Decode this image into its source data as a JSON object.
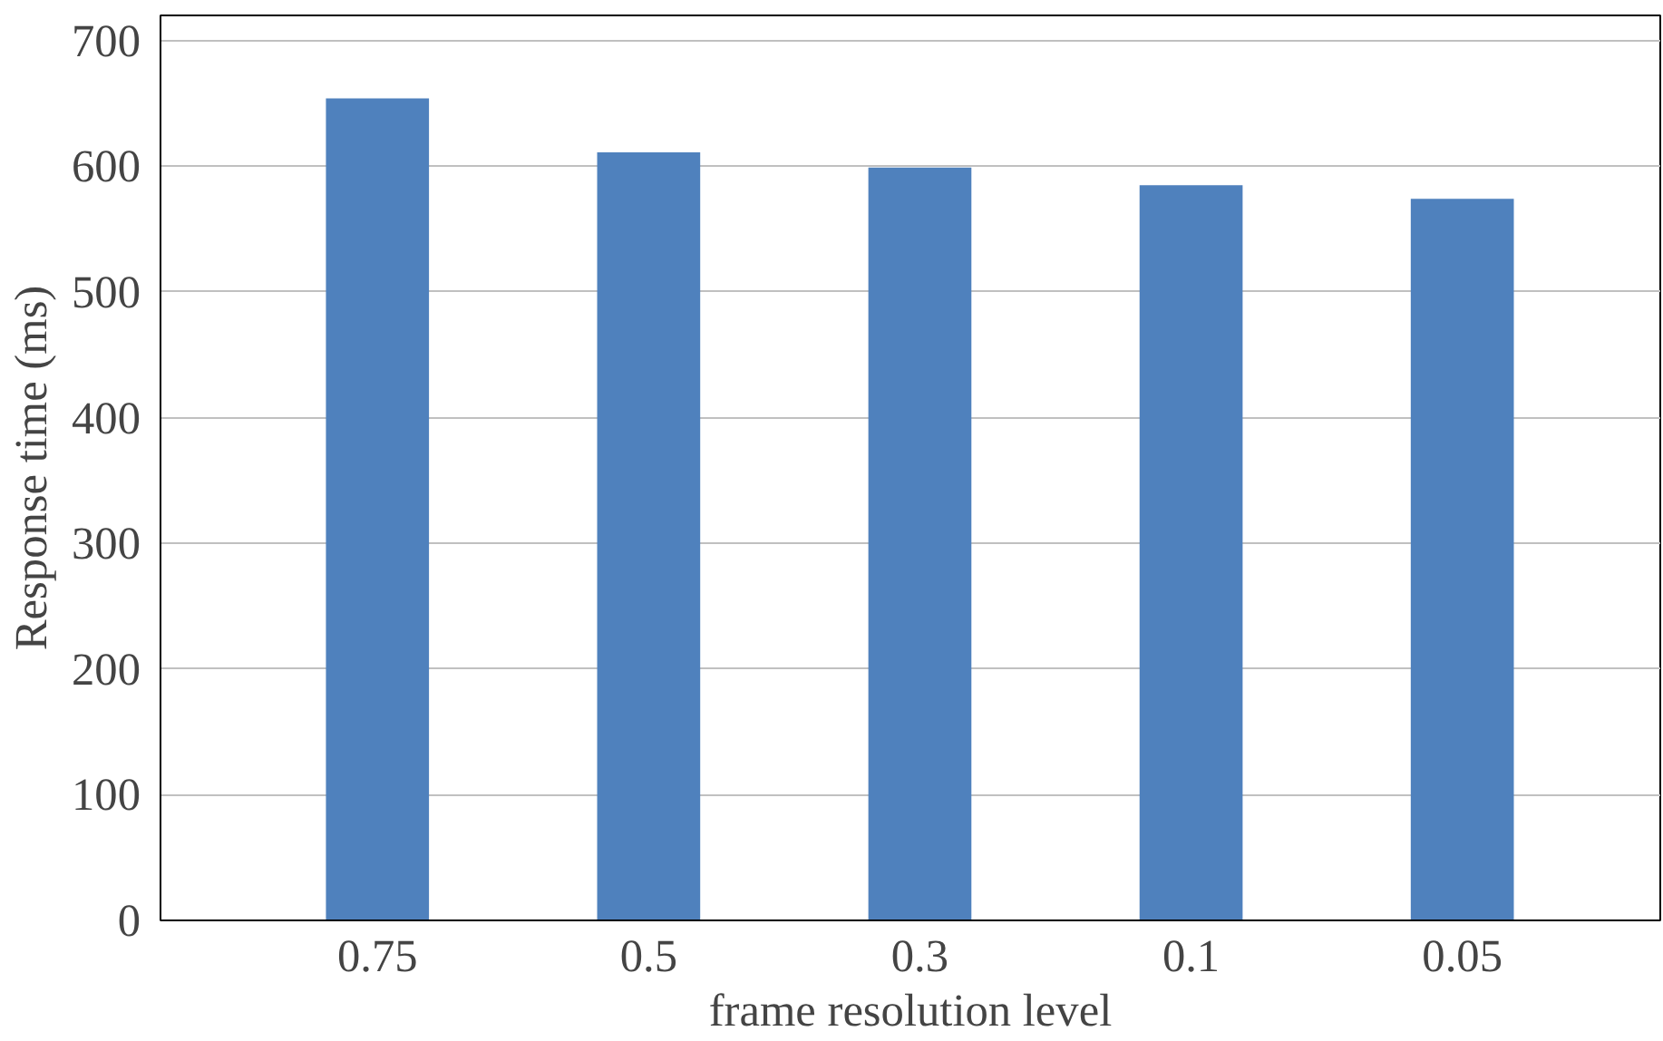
{
  "chart_data": {
    "type": "bar",
    "xlabel": "frame resolution level",
    "ylabel": "Response time (ms)",
    "categories": [
      "0.75",
      "0.5",
      "0.3",
      "0.1",
      "0.05"
    ],
    "values": [
      654,
      611,
      599,
      585,
      574
    ],
    "color": "#4f81bd",
    "ylim": [
      0,
      720
    ],
    "yticks": [
      0,
      100,
      200,
      300,
      400,
      500,
      600,
      700
    ],
    "grid": "y"
  }
}
